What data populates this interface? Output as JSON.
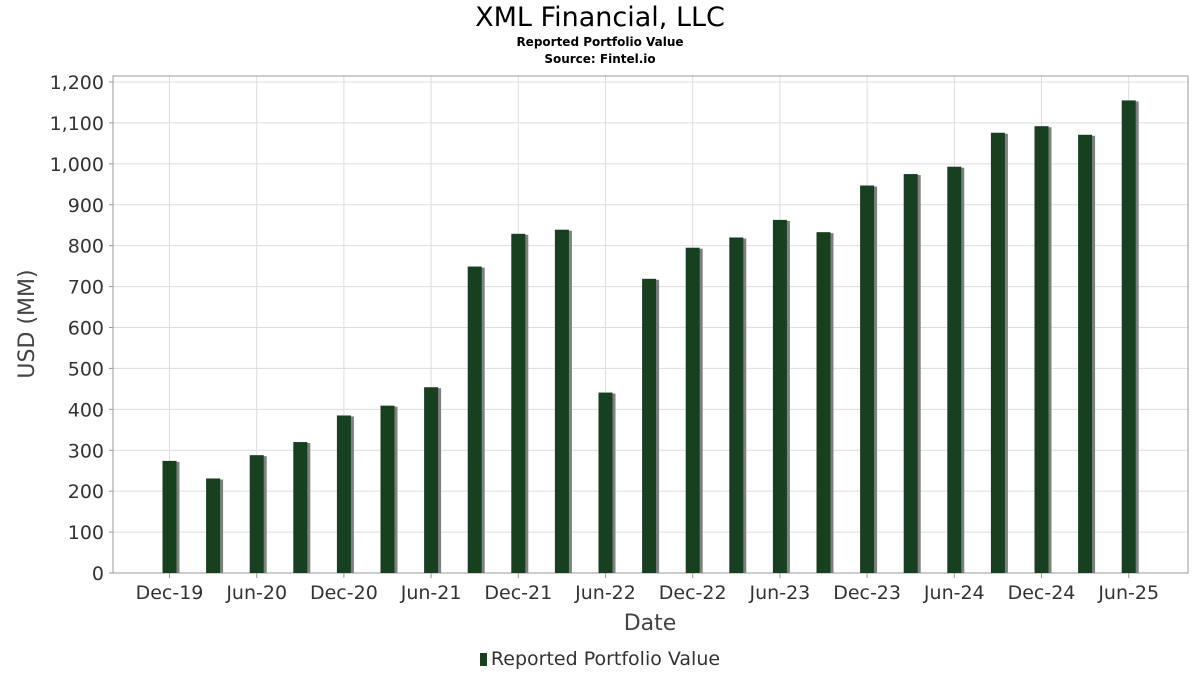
{
  "chart_data": {
    "type": "bar",
    "title": "XML Financial, LLC",
    "subtitles": [
      "Reported Portfolio Value",
      "Source: Fintel.io"
    ],
    "xlabel": "Date",
    "ylabel": "USD (MM)",
    "ylim": [
      0,
      1200
    ],
    "y_ticks": [
      0,
      100,
      200,
      300,
      400,
      500,
      600,
      700,
      800,
      900,
      1000,
      1100,
      1200
    ],
    "y_tick_labels": [
      "0",
      "100",
      "200",
      "300",
      "400",
      "500",
      "600",
      "700",
      "800",
      "900",
      "1,000",
      "1,100",
      "1,200"
    ],
    "x_tick_labels": [
      "Dec-19",
      "Jun-20",
      "Dec-20",
      "Jun-21",
      "Dec-21",
      "Jun-22",
      "Dec-22",
      "Jun-23",
      "Dec-23",
      "Jun-24",
      "Dec-24",
      "Jun-25"
    ],
    "grid": true,
    "legend_position": "bottom",
    "bar_color": "#17401f",
    "shadow_color": "#808080",
    "series": [
      {
        "name": "Reported Portfolio Value",
        "values": [
          274,
          231,
          288,
          320,
          385,
          409,
          454,
          749,
          829,
          839,
          441,
          719,
          795,
          820,
          863,
          833,
          947,
          975,
          993,
          1076,
          1092,
          1071,
          1155
        ]
      }
    ]
  }
}
